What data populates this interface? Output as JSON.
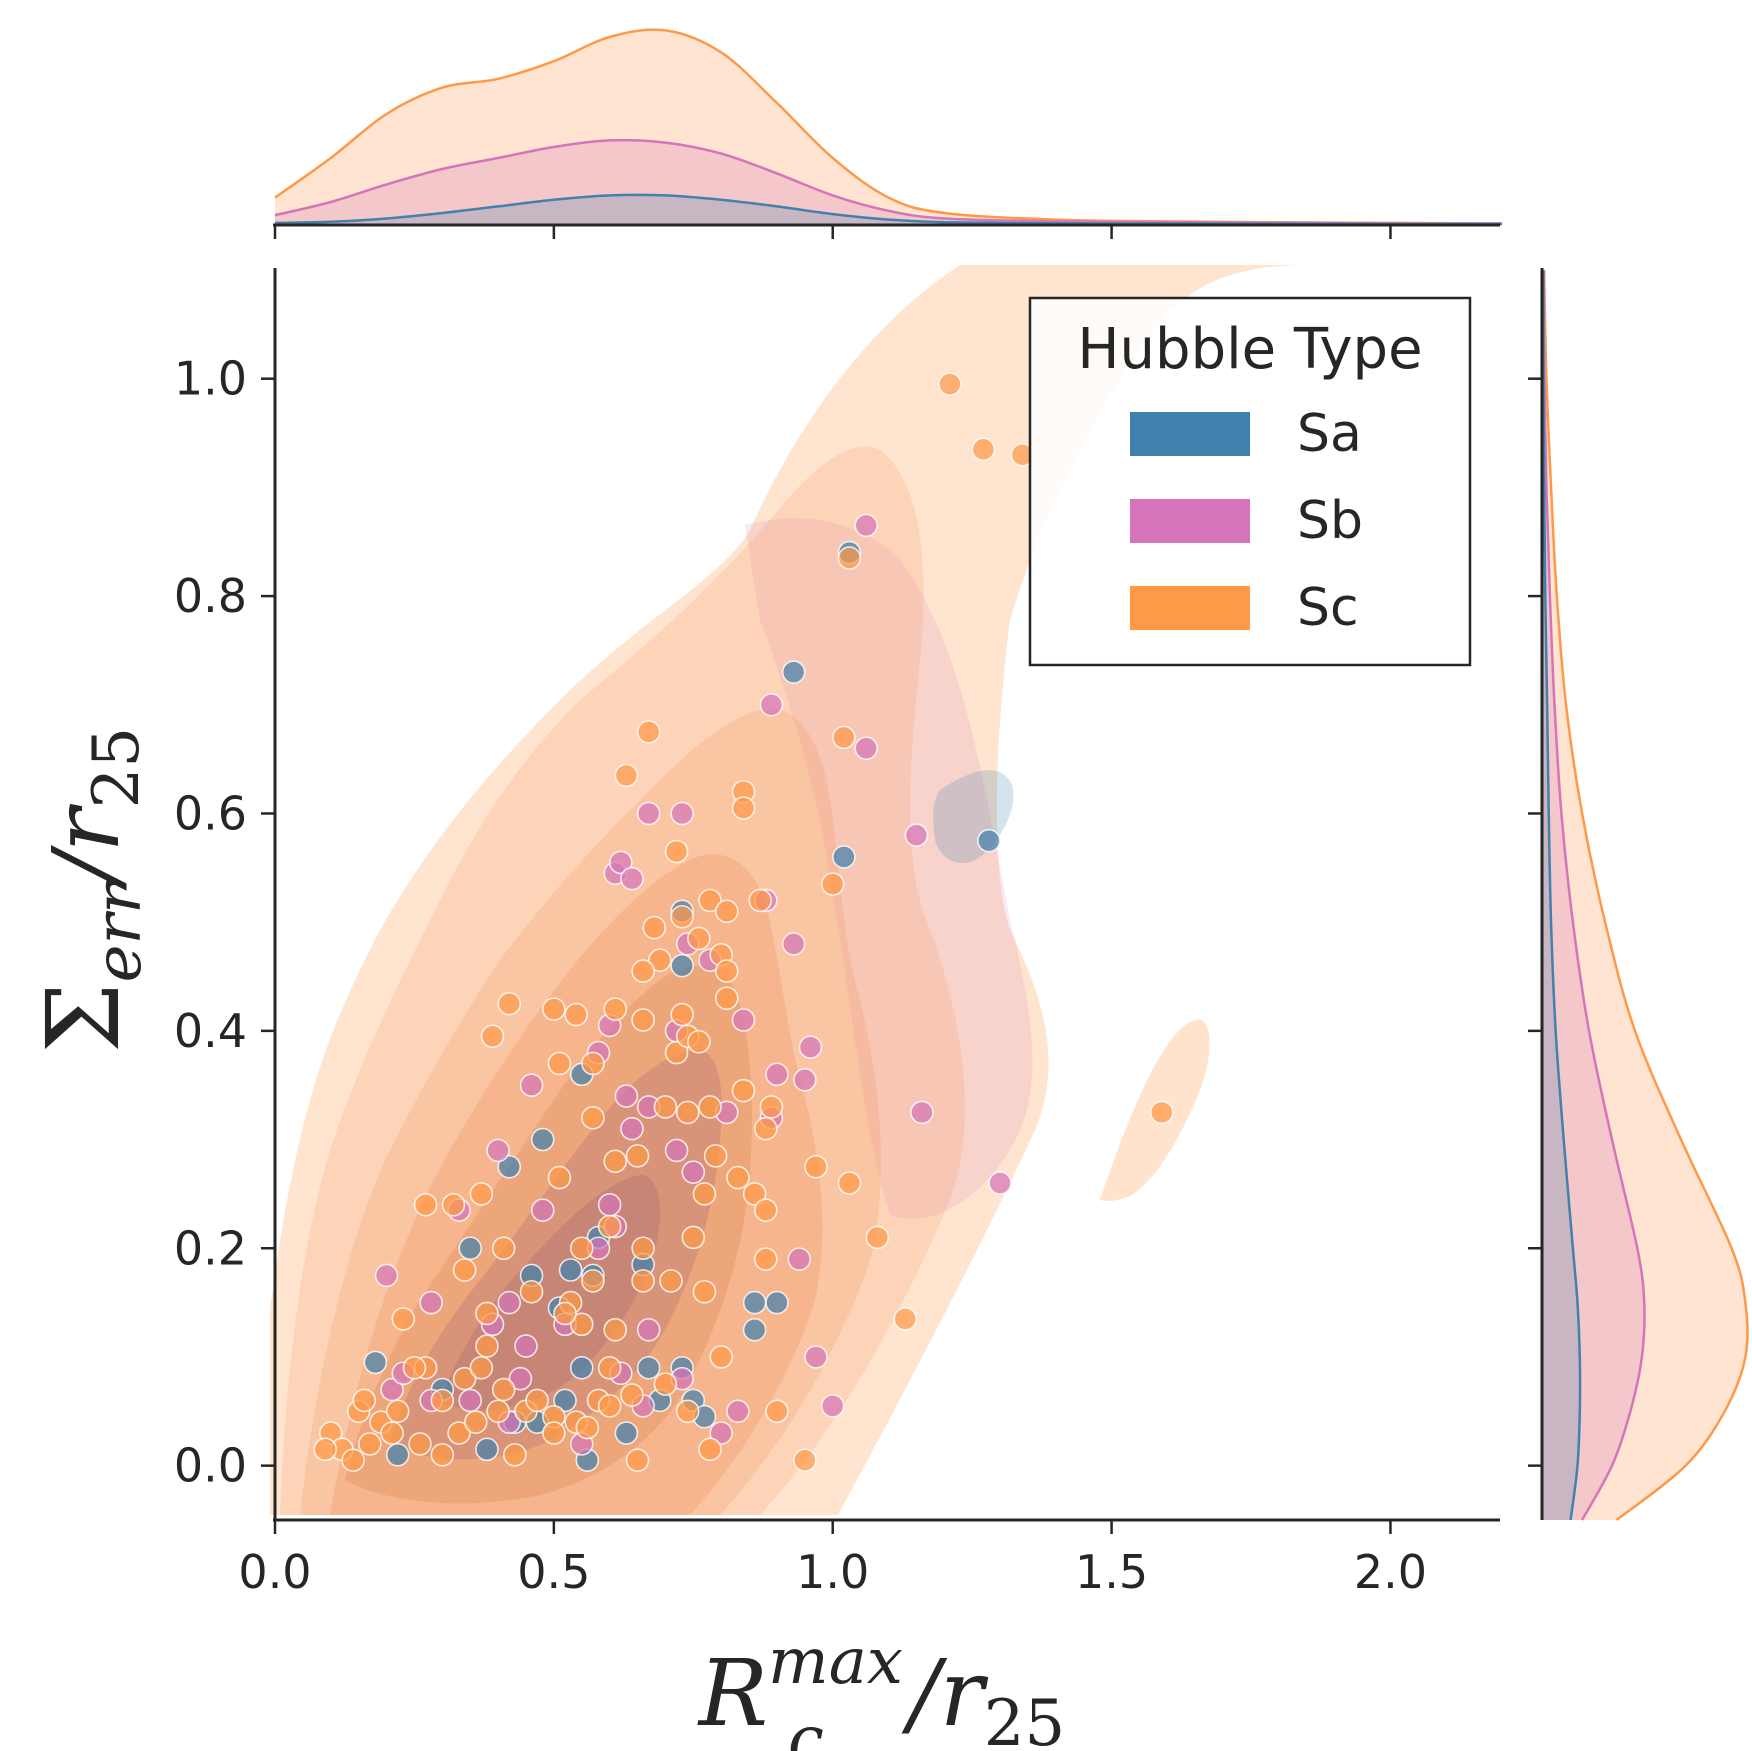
{
  "chart_data": {
    "type": "scatter",
    "subtype": "jointplot with KDE contours and marginal KDE curves",
    "title": "",
    "xlabel": "R_c^max / r_25",
    "ylabel": "Σ_err / r_25",
    "xlim": [
      0.0,
      2.2
    ],
    "ylim": [
      -0.05,
      1.1
    ],
    "x_ticks": [
      "0.0",
      "0.5",
      "1.0",
      "1.5",
      "2.0"
    ],
    "x_tick_values": [
      0.0,
      0.5,
      1.0,
      1.5,
      2.0
    ],
    "y_ticks": [
      "0.0",
      "0.2",
      "0.4",
      "0.6",
      "0.8",
      "1.0"
    ],
    "y_tick_values": [
      0.0,
      0.2,
      0.4,
      0.6,
      0.8,
      1.0
    ],
    "grid": false,
    "legend": {
      "title": "Hubble Type",
      "placement": "upper-right",
      "entries": [
        "Sa",
        "Sb",
        "Sc"
      ]
    },
    "series": [
      {
        "name": "Sa",
        "color": "#4281ad",
        "points": [
          [
            1.03,
            0.84
          ],
          [
            0.93,
            0.73
          ],
          [
            1.28,
            0.575
          ],
          [
            1.02,
            0.56
          ],
          [
            0.73,
            0.51
          ],
          [
            0.73,
            0.46
          ],
          [
            0.55,
            0.36
          ],
          [
            0.48,
            0.3
          ],
          [
            0.42,
            0.275
          ],
          [
            0.58,
            0.21
          ],
          [
            0.35,
            0.2
          ],
          [
            0.53,
            0.18
          ],
          [
            0.57,
            0.175
          ],
          [
            0.46,
            0.175
          ],
          [
            0.66,
            0.185
          ],
          [
            0.51,
            0.145
          ],
          [
            0.86,
            0.15
          ],
          [
            0.9,
            0.15
          ],
          [
            0.55,
            0.09
          ],
          [
            0.67,
            0.09
          ],
          [
            0.73,
            0.09
          ],
          [
            0.75,
            0.06
          ],
          [
            0.52,
            0.06
          ],
          [
            0.43,
            0.04
          ],
          [
            0.47,
            0.04
          ],
          [
            0.77,
            0.045
          ],
          [
            0.63,
            0.03
          ],
          [
            0.38,
            0.015
          ],
          [
            0.56,
            0.005
          ],
          [
            0.22,
            0.01
          ],
          [
            0.18,
            0.095
          ],
          [
            0.3,
            0.07
          ],
          [
            0.69,
            0.06
          ],
          [
            0.86,
            0.125
          ]
        ]
      },
      {
        "name": "Sb",
        "color": "#d574b9",
        "points": [
          [
            1.06,
            0.865
          ],
          [
            0.89,
            0.7
          ],
          [
            1.06,
            0.66
          ],
          [
            0.67,
            0.6
          ],
          [
            0.73,
            0.6
          ],
          [
            1.15,
            0.58
          ],
          [
            0.61,
            0.545
          ],
          [
            0.62,
            0.555
          ],
          [
            0.64,
            0.54
          ],
          [
            0.88,
            0.52
          ],
          [
            0.74,
            0.48
          ],
          [
            0.93,
            0.48
          ],
          [
            0.78,
            0.465
          ],
          [
            0.6,
            0.405
          ],
          [
            0.58,
            0.38
          ],
          [
            0.84,
            0.41
          ],
          [
            0.72,
            0.4
          ],
          [
            0.96,
            0.385
          ],
          [
            0.9,
            0.36
          ],
          [
            0.95,
            0.355
          ],
          [
            0.46,
            0.35
          ],
          [
            0.63,
            0.34
          ],
          [
            0.67,
            0.33
          ],
          [
            1.16,
            0.325
          ],
          [
            0.89,
            0.32
          ],
          [
            0.81,
            0.325
          ],
          [
            0.4,
            0.29
          ],
          [
            0.72,
            0.29
          ],
          [
            0.64,
            0.31
          ],
          [
            0.75,
            0.27
          ],
          [
            1.3,
            0.26
          ],
          [
            0.6,
            0.24
          ],
          [
            0.33,
            0.235
          ],
          [
            0.48,
            0.235
          ],
          [
            0.61,
            0.22
          ],
          [
            0.58,
            0.2
          ],
          [
            0.94,
            0.19
          ],
          [
            0.42,
            0.15
          ],
          [
            0.28,
            0.15
          ],
          [
            0.52,
            0.13
          ],
          [
            0.39,
            0.13
          ],
          [
            0.45,
            0.11
          ],
          [
            0.62,
            0.085
          ],
          [
            0.73,
            0.08
          ],
          [
            0.97,
            0.1
          ],
          [
            1.0,
            0.055
          ],
          [
            0.66,
            0.055
          ],
          [
            0.83,
            0.05
          ],
          [
            0.8,
            0.03
          ],
          [
            0.55,
            0.02
          ],
          [
            0.28,
            0.06
          ],
          [
            0.21,
            0.07
          ],
          [
            0.23,
            0.085
          ],
          [
            0.2,
            0.175
          ],
          [
            0.35,
            0.06
          ],
          [
            0.44,
            0.08
          ],
          [
            0.67,
            0.125
          ],
          [
            0.42,
            0.04
          ]
        ]
      },
      {
        "name": "Sc",
        "color": "#fe9948",
        "points": [
          [
            1.21,
            0.995
          ],
          [
            1.27,
            0.935
          ],
          [
            1.34,
            0.93
          ],
          [
            1.03,
            0.835
          ],
          [
            0.67,
            0.675
          ],
          [
            0.63,
            0.635
          ],
          [
            1.02,
            0.67
          ],
          [
            0.84,
            0.62
          ],
          [
            0.84,
            0.605
          ],
          [
            0.72,
            0.565
          ],
          [
            1.0,
            0.535
          ],
          [
            0.78,
            0.52
          ],
          [
            0.87,
            0.52
          ],
          [
            0.81,
            0.51
          ],
          [
            0.73,
            0.505
          ],
          [
            0.68,
            0.495
          ],
          [
            0.76,
            0.485
          ],
          [
            0.69,
            0.465
          ],
          [
            0.8,
            0.47
          ],
          [
            0.81,
            0.455
          ],
          [
            0.66,
            0.455
          ],
          [
            0.81,
            0.43
          ],
          [
            0.61,
            0.42
          ],
          [
            0.42,
            0.425
          ],
          [
            0.5,
            0.42
          ],
          [
            0.54,
            0.415
          ],
          [
            0.73,
            0.415
          ],
          [
            0.39,
            0.395
          ],
          [
            0.66,
            0.41
          ],
          [
            0.72,
            0.38
          ],
          [
            0.74,
            0.395
          ],
          [
            0.76,
            0.39
          ],
          [
            0.51,
            0.37
          ],
          [
            0.57,
            0.37
          ],
          [
            0.84,
            0.345
          ],
          [
            0.57,
            0.32
          ],
          [
            0.7,
            0.33
          ],
          [
            0.78,
            0.33
          ],
          [
            0.88,
            0.31
          ],
          [
            0.89,
            0.33
          ],
          [
            0.74,
            0.325
          ],
          [
            0.61,
            0.28
          ],
          [
            0.65,
            0.285
          ],
          [
            0.97,
            0.275
          ],
          [
            0.79,
            0.285
          ],
          [
            0.51,
            0.265
          ],
          [
            0.83,
            0.265
          ],
          [
            0.86,
            0.25
          ],
          [
            1.03,
            0.26
          ],
          [
            0.77,
            0.25
          ],
          [
            0.88,
            0.235
          ],
          [
            0.37,
            0.25
          ],
          [
            0.27,
            0.24
          ],
          [
            0.32,
            0.24
          ],
          [
            0.6,
            0.22
          ],
          [
            0.66,
            0.2
          ],
          [
            0.75,
            0.21
          ],
          [
            1.08,
            0.21
          ],
          [
            0.41,
            0.2
          ],
          [
            0.55,
            0.2
          ],
          [
            0.88,
            0.19
          ],
          [
            0.66,
            0.17
          ],
          [
            0.71,
            0.17
          ],
          [
            0.77,
            0.16
          ],
          [
            0.53,
            0.15
          ],
          [
            0.46,
            0.16
          ],
          [
            0.34,
            0.18
          ],
          [
            0.23,
            0.135
          ],
          [
            0.38,
            0.14
          ],
          [
            0.55,
            0.13
          ],
          [
            0.61,
            0.125
          ],
          [
            0.38,
            0.11
          ],
          [
            0.27,
            0.09
          ],
          [
            0.3,
            0.06
          ],
          [
            0.34,
            0.08
          ],
          [
            0.37,
            0.09
          ],
          [
            0.41,
            0.07
          ],
          [
            0.45,
            0.05
          ],
          [
            0.5,
            0.045
          ],
          [
            0.54,
            0.04
          ],
          [
            0.58,
            0.06
          ],
          [
            0.64,
            0.065
          ],
          [
            0.7,
            0.075
          ],
          [
            0.74,
            0.05
          ],
          [
            0.8,
            0.1
          ],
          [
            0.9,
            0.05
          ],
          [
            0.95,
            0.005
          ],
          [
            1.13,
            0.135
          ],
          [
            1.59,
            0.325
          ],
          [
            0.1,
            0.03
          ],
          [
            0.12,
            0.015
          ],
          [
            0.15,
            0.05
          ],
          [
            0.17,
            0.02
          ],
          [
            0.19,
            0.04
          ],
          [
            0.22,
            0.05
          ],
          [
            0.26,
            0.02
          ],
          [
            0.3,
            0.01
          ],
          [
            0.33,
            0.03
          ],
          [
            0.36,
            0.04
          ],
          [
            0.4,
            0.05
          ],
          [
            0.43,
            0.01
          ],
          [
            0.47,
            0.06
          ],
          [
            0.5,
            0.03
          ],
          [
            0.56,
            0.035
          ],
          [
            0.6,
            0.055
          ],
          [
            0.65,
            0.005
          ],
          [
            0.78,
            0.015
          ],
          [
            0.16,
            0.06
          ],
          [
            0.21,
            0.03
          ],
          [
            0.25,
            0.09
          ],
          [
            0.09,
            0.015
          ],
          [
            0.14,
            0.005
          ],
          [
            0.6,
            0.09
          ],
          [
            0.52,
            0.14
          ],
          [
            0.57,
            0.17
          ]
        ]
      }
    ],
    "marginal_x_kde": {
      "x": [
        0.0,
        0.1,
        0.2,
        0.3,
        0.4,
        0.5,
        0.6,
        0.7,
        0.8,
        0.9,
        1.0,
        1.1,
        1.2,
        1.4,
        1.6,
        1.8,
        2.0,
        2.2
      ],
      "Sa": [
        0.005,
        0.01,
        0.025,
        0.05,
        0.08,
        0.11,
        0.13,
        0.13,
        0.11,
        0.08,
        0.045,
        0.02,
        0.008,
        0.003,
        0.002,
        0.001,
        0.0,
        0.0
      ],
      "Sb": [
        0.04,
        0.1,
        0.18,
        0.25,
        0.3,
        0.35,
        0.38,
        0.37,
        0.32,
        0.23,
        0.13,
        0.06,
        0.025,
        0.012,
        0.008,
        0.005,
        0.003,
        0.002
      ],
      "Sc": [
        0.12,
        0.3,
        0.5,
        0.62,
        0.66,
        0.74,
        0.85,
        0.88,
        0.78,
        0.55,
        0.3,
        0.12,
        0.05,
        0.02,
        0.012,
        0.008,
        0.005,
        0.003
      ]
    },
    "marginal_y_kde": {
      "y": [
        -0.05,
        0.0,
        0.05,
        0.1,
        0.15,
        0.2,
        0.3,
        0.4,
        0.5,
        0.6,
        0.7,
        0.8,
        0.9,
        1.0,
        1.1
      ],
      "Sa": [
        0.12,
        0.15,
        0.16,
        0.16,
        0.15,
        0.13,
        0.09,
        0.055,
        0.035,
        0.025,
        0.018,
        0.01,
        0.005,
        0.002,
        0.001
      ],
      "Sb": [
        0.17,
        0.3,
        0.38,
        0.43,
        0.44,
        0.41,
        0.3,
        0.2,
        0.13,
        0.08,
        0.05,
        0.03,
        0.015,
        0.006,
        0.003
      ],
      "Sc": [
        0.32,
        0.62,
        0.79,
        0.88,
        0.88,
        0.82,
        0.6,
        0.4,
        0.27,
        0.17,
        0.1,
        0.06,
        0.035,
        0.015,
        0.005
      ]
    }
  }
}
